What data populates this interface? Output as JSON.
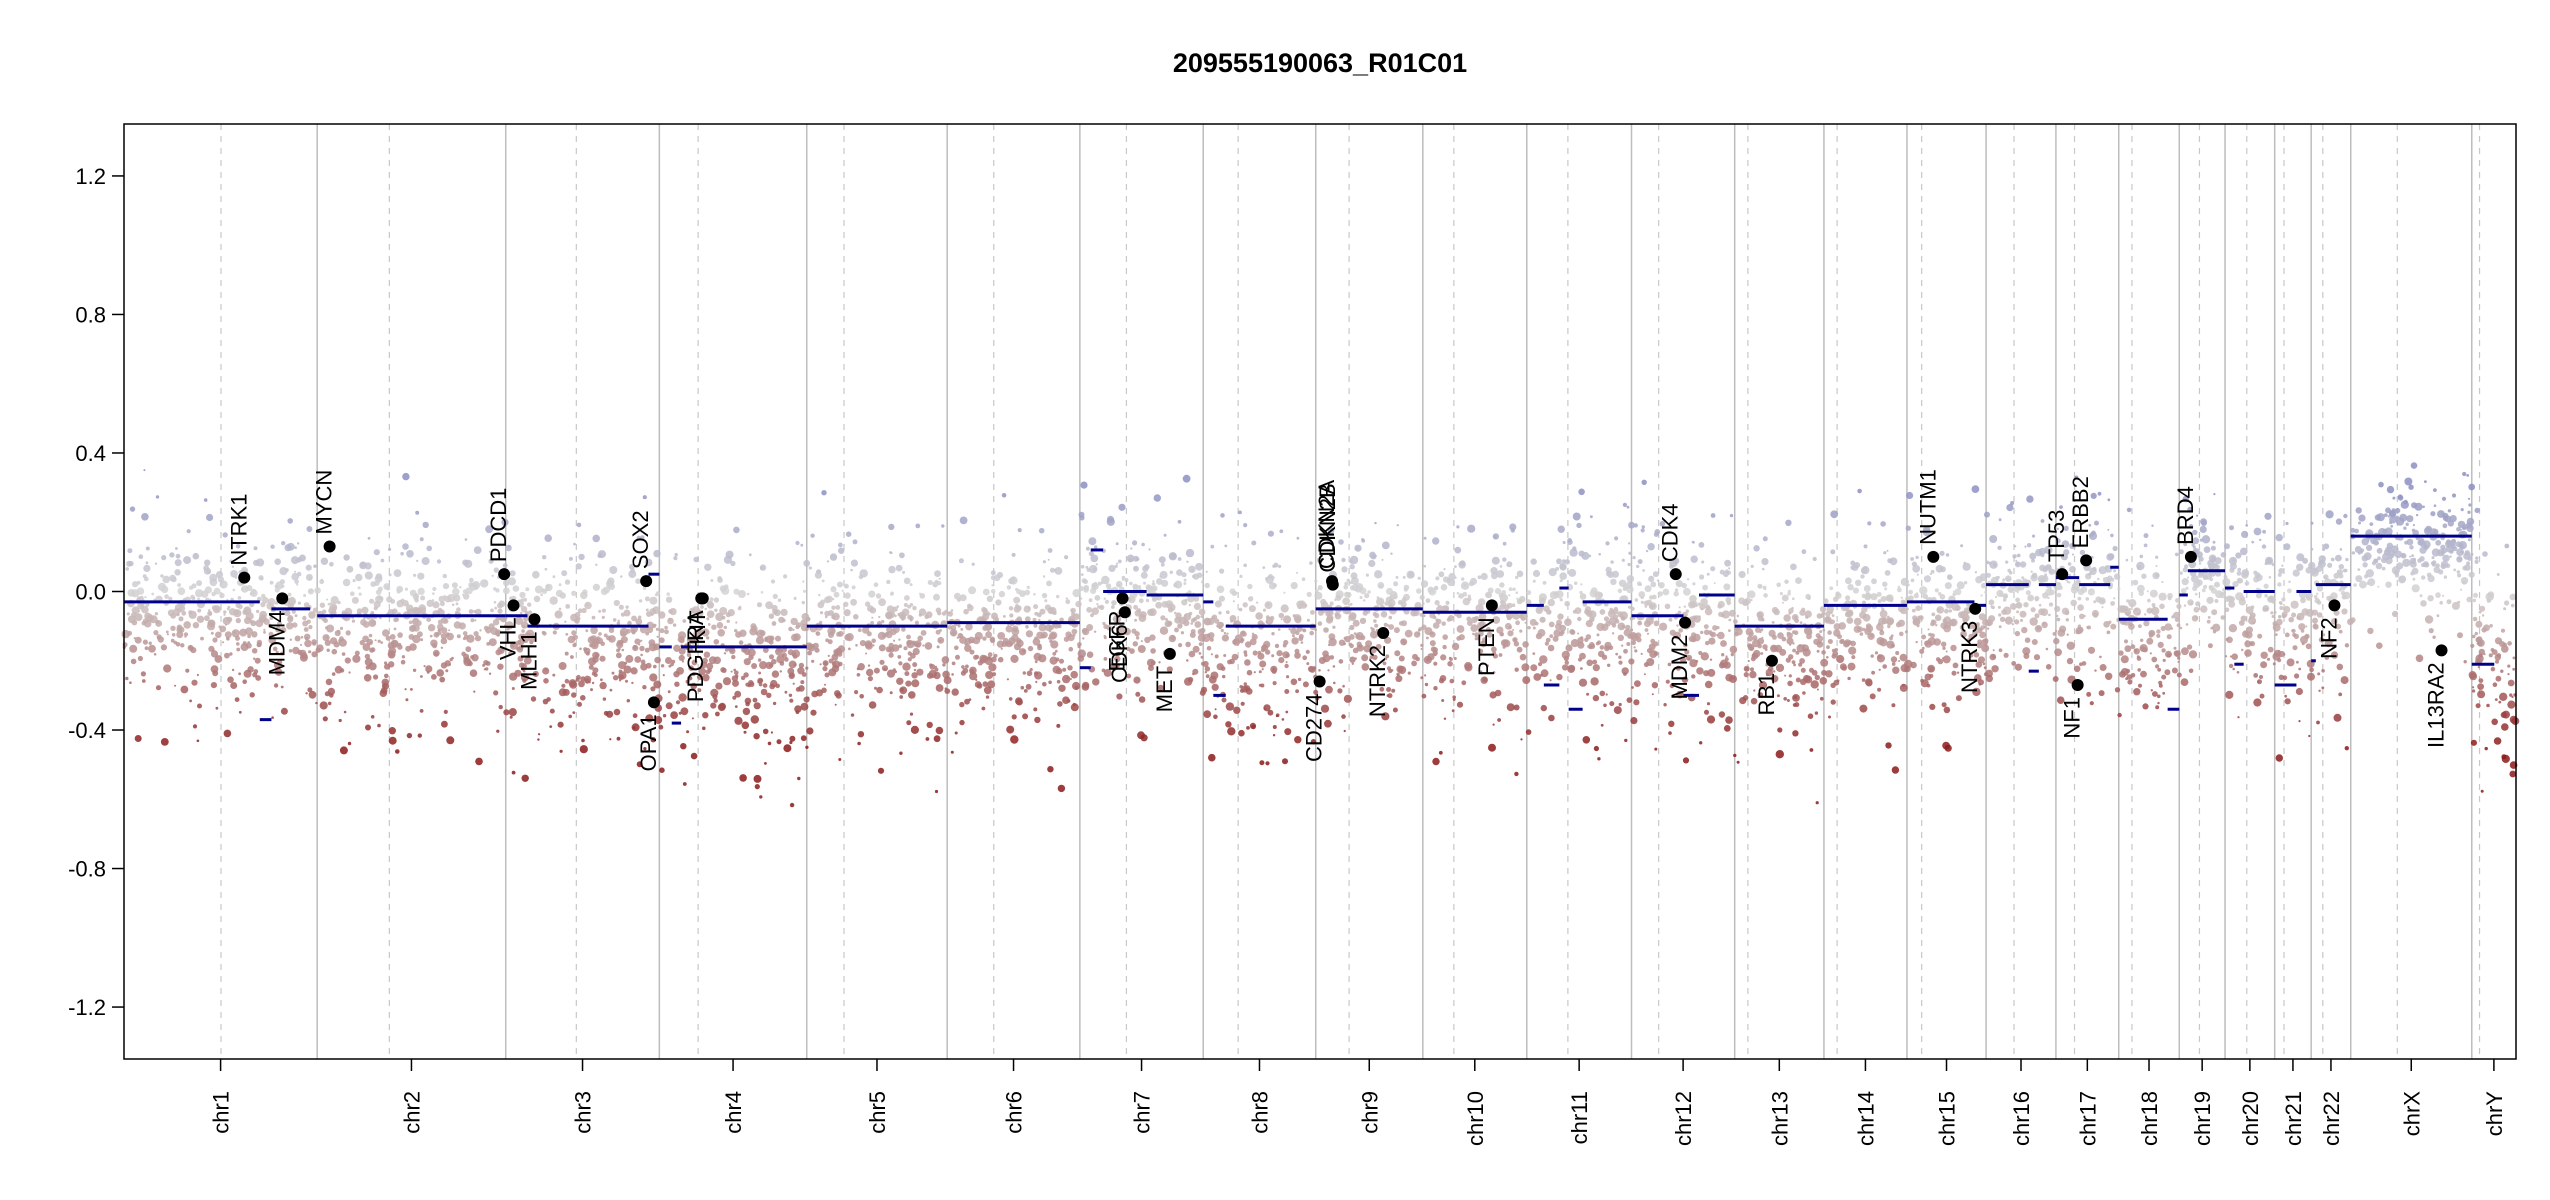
{
  "chart_data": {
    "type": "scatter",
    "title": "209555190063_R01C01",
    "xlabel": "",
    "ylabel": "",
    "ylim": [
      -1.35,
      1.35
    ],
    "yticks": [
      -1.2,
      -0.8,
      -0.4,
      0.0,
      0.4,
      0.8,
      1.2
    ],
    "ytick_labels": [
      "-1.2",
      "-0.8",
      "-0.4",
      "0.0",
      "0.4",
      "0.8",
      "1.2"
    ],
    "chromosomes": [
      {
        "name": "chr1",
        "start": 0.0,
        "end": 249.0,
        "centromere": 125.0
      },
      {
        "name": "chr2",
        "start": 249.0,
        "end": 492.0,
        "centromere": 93.0
      },
      {
        "name": "chr3",
        "start": 492.0,
        "end": 690.0,
        "centromere": 91.0
      },
      {
        "name": "chr4",
        "start": 690.0,
        "end": 880.0,
        "centromere": 50.0
      },
      {
        "name": "chr5",
        "start": 880.0,
        "end": 1061.0,
        "centromere": 48.0
      },
      {
        "name": "chr6",
        "start": 1061.0,
        "end": 1232.0,
        "centromere": 60.0
      },
      {
        "name": "chr7",
        "start": 1232.0,
        "end": 1391.0,
        "centromere": 60.0
      },
      {
        "name": "chr8",
        "start": 1391.0,
        "end": 1536.0,
        "centromere": 45.0
      },
      {
        "name": "chr9",
        "start": 1536.0,
        "end": 1674.0,
        "centromere": 43.0
      },
      {
        "name": "chr10",
        "start": 1674.0,
        "end": 1808.0,
        "centromere": 40.0
      },
      {
        "name": "chr11",
        "start": 1808.0,
        "end": 1943.0,
        "centromere": 53.0
      },
      {
        "name": "chr12",
        "start": 1943.0,
        "end": 2076.0,
        "centromere": 35.0
      },
      {
        "name": "chr13",
        "start": 2076.0,
        "end": 2191.0,
        "centromere": 17.0
      },
      {
        "name": "chr14",
        "start": 2191.0,
        "end": 2298.0,
        "centromere": 17.0
      },
      {
        "name": "chr15",
        "start": 2298.0,
        "end": 2400.0,
        "centromere": 19.0
      },
      {
        "name": "chr16",
        "start": 2400.0,
        "end": 2490.0,
        "centromere": 36.0
      },
      {
        "name": "chr17",
        "start": 2490.0,
        "end": 2571.0,
        "centromere": 24.0
      },
      {
        "name": "chr18",
        "start": 2571.0,
        "end": 2649.0,
        "centromere": 17.0
      },
      {
        "name": "chr19",
        "start": 2649.0,
        "end": 2708.0,
        "centromere": 26.0
      },
      {
        "name": "chr20",
        "start": 2708.0,
        "end": 2772.0,
        "centromere": 28.0
      },
      {
        "name": "chr21",
        "start": 2772.0,
        "end": 2819.0,
        "centromere": 12.0
      },
      {
        "name": "chr22",
        "start": 2819.0,
        "end": 2870.0,
        "centromere": 15.0
      },
      {
        "name": "chrX",
        "start": 2870.0,
        "end": 3026.0,
        "centromere": 60.0
      },
      {
        "name": "chrY",
        "start": 3026.0,
        "end": 3083.0,
        "centromere": 10.0
      }
    ],
    "xlim": [
      0,
      3083
    ],
    "segments": [
      {
        "x0": 0,
        "x1": 175,
        "y": -0.03
      },
      {
        "x0": 175,
        "x1": 190,
        "y": -0.37
      },
      {
        "x0": 190,
        "x1": 240,
        "y": -0.05
      },
      {
        "x0": 249,
        "x1": 492,
        "y": -0.07
      },
      {
        "x0": 492,
        "x1": 520,
        "y": -0.07
      },
      {
        "x0": 520,
        "x1": 676,
        "y": -0.1
      },
      {
        "x0": 676,
        "x1": 690,
        "y": 0.05
      },
      {
        "x0": 690,
        "x1": 706,
        "y": -0.16
      },
      {
        "x0": 706,
        "x1": 718,
        "y": -0.38
      },
      {
        "x0": 718,
        "x1": 880,
        "y": -0.16
      },
      {
        "x0": 880,
        "x1": 1061,
        "y": -0.1
      },
      {
        "x0": 1061,
        "x1": 1232,
        "y": -0.09
      },
      {
        "x0": 1232,
        "x1": 1246,
        "y": -0.22
      },
      {
        "x0": 1246,
        "x1": 1262,
        "y": 0.12
      },
      {
        "x0": 1262,
        "x1": 1318,
        "y": 0.0
      },
      {
        "x0": 1318,
        "x1": 1391,
        "y": -0.01
      },
      {
        "x0": 1391,
        "x1": 1404,
        "y": -0.03
      },
      {
        "x0": 1404,
        "x1": 1420,
        "y": -0.3
      },
      {
        "x0": 1420,
        "x1": 1536,
        "y": -0.1
      },
      {
        "x0": 1536,
        "x1": 1674,
        "y": -0.05
      },
      {
        "x0": 1674,
        "x1": 1808,
        "y": -0.06
      },
      {
        "x0": 1808,
        "x1": 1830,
        "y": -0.04
      },
      {
        "x0": 1830,
        "x1": 1850,
        "y": -0.27
      },
      {
        "x0": 1850,
        "x1": 1862,
        "y": 0.01
      },
      {
        "x0": 1862,
        "x1": 1880,
        "y": -0.34
      },
      {
        "x0": 1880,
        "x1": 1943,
        "y": -0.03
      },
      {
        "x0": 1943,
        "x1": 2010,
        "y": -0.07
      },
      {
        "x0": 2010,
        "x1": 2030,
        "y": -0.3
      },
      {
        "x0": 2030,
        "x1": 2076,
        "y": -0.01
      },
      {
        "x0": 2076,
        "x1": 2191,
        "y": -0.1
      },
      {
        "x0": 2191,
        "x1": 2298,
        "y": -0.04
      },
      {
        "x0": 2298,
        "x1": 2385,
        "y": -0.03
      },
      {
        "x0": 2385,
        "x1": 2400,
        "y": -0.04
      },
      {
        "x0": 2400,
        "x1": 2455,
        "y": 0.02
      },
      {
        "x0": 2455,
        "x1": 2468,
        "y": -0.23
      },
      {
        "x0": 2468,
        "x1": 2490,
        "y": 0.02
      },
      {
        "x0": 2490,
        "x1": 2520,
        "y": 0.04
      },
      {
        "x0": 2520,
        "x1": 2560,
        "y": 0.02
      },
      {
        "x0": 2560,
        "x1": 2571,
        "y": 0.07
      },
      {
        "x0": 2571,
        "x1": 2634,
        "y": -0.08
      },
      {
        "x0": 2634,
        "x1": 2649,
        "y": -0.34
      },
      {
        "x0": 2649,
        "x1": 2660,
        "y": -0.01
      },
      {
        "x0": 2660,
        "x1": 2708,
        "y": 0.06
      },
      {
        "x0": 2708,
        "x1": 2720,
        "y": 0.01
      },
      {
        "x0": 2720,
        "x1": 2732,
        "y": -0.21
      },
      {
        "x0": 2732,
        "x1": 2772,
        "y": 0.0
      },
      {
        "x0": 2772,
        "x1": 2800,
        "y": -0.27
      },
      {
        "x0": 2800,
        "x1": 2819,
        "y": 0.0
      },
      {
        "x0": 2819,
        "x1": 2825,
        "y": -0.2
      },
      {
        "x0": 2825,
        "x1": 2870,
        "y": 0.02
      },
      {
        "x0": 2870,
        "x1": 3026,
        "y": 0.16
      },
      {
        "x0": 3026,
        "x1": 3055,
        "y": -0.21
      }
    ],
    "genes": [
      {
        "name": "NTRK1",
        "x": 155,
        "y": 0.04,
        "label_side": "above"
      },
      {
        "name": "MDM4",
        "x": 204,
        "y": -0.02,
        "label_side": "below"
      },
      {
        "name": "MYCN",
        "x": 265,
        "y": 0.13,
        "label_side": "above"
      },
      {
        "name": "PDCD1",
        "x": 490,
        "y": 0.05,
        "label_side": "above"
      },
      {
        "name": "VHL",
        "x": 502,
        "y": -0.04,
        "label_side": "below"
      },
      {
        "name": "MLH1",
        "x": 529,
        "y": -0.08,
        "label_side": "below"
      },
      {
        "name": "SOX2",
        "x": 673,
        "y": 0.03,
        "label_side": "above"
      },
      {
        "name": "OPA1",
        "x": 683,
        "y": -0.32,
        "label_side": "below"
      },
      {
        "name": "PDGFRA",
        "x": 744,
        "y": -0.02,
        "label_side": "below"
      },
      {
        "name": "KIT",
        "x": 746,
        "y": -0.02,
        "label_side": "below"
      },
      {
        "name": "EGFR",
        "x": 1287,
        "y": -0.02,
        "label_side": "below"
      },
      {
        "name": "CDK6",
        "x": 1290,
        "y": -0.06,
        "label_side": "below"
      },
      {
        "name": "MET",
        "x": 1348,
        "y": -0.18,
        "label_side": "below"
      },
      {
        "name": "CD274",
        "x": 1541,
        "y": -0.26,
        "label_side": "below"
      },
      {
        "name": "CDKN2A",
        "x": 1557,
        "y": 0.03,
        "label_side": "above"
      },
      {
        "name": "CDKN2B",
        "x": 1558,
        "y": 0.02,
        "label_side": "above"
      },
      {
        "name": "NTRK2",
        "x": 1623,
        "y": -0.12,
        "label_side": "below"
      },
      {
        "name": "PTEN",
        "x": 1763,
        "y": -0.04,
        "label_side": "below"
      },
      {
        "name": "CDK4",
        "x": 2000,
        "y": 0.05,
        "label_side": "above"
      },
      {
        "name": "MDM2",
        "x": 2012,
        "y": -0.09,
        "label_side": "below"
      },
      {
        "name": "RB1",
        "x": 2124,
        "y": -0.2,
        "label_side": "below"
      },
      {
        "name": "NUTM1",
        "x": 2332,
        "y": 0.1,
        "label_side": "above"
      },
      {
        "name": "NTRK3",
        "x": 2386,
        "y": -0.05,
        "label_side": "below"
      },
      {
        "name": "TP53",
        "x": 2498,
        "y": 0.05,
        "label_side": "above"
      },
      {
        "name": "NF1",
        "x": 2518,
        "y": -0.27,
        "label_side": "below"
      },
      {
        "name": "ERBB2",
        "x": 2529,
        "y": 0.09,
        "label_side": "above"
      },
      {
        "name": "BRD4",
        "x": 2664,
        "y": 0.1,
        "label_side": "above"
      },
      {
        "name": "NF2",
        "x": 2849,
        "y": -0.04,
        "label_side": "below"
      },
      {
        "name": "IL13RA2",
        "x": 2987,
        "y": -0.17,
        "label_side": "below"
      }
    ],
    "profile": [
      {
        "name": "chr1",
        "baseline": -0.07,
        "spread": 0.13
      },
      {
        "name": "chr2",
        "baseline": -0.1,
        "spread": 0.14
      },
      {
        "name": "chr3",
        "baseline": -0.12,
        "spread": 0.15
      },
      {
        "name": "chr4",
        "baseline": -0.17,
        "spread": 0.14
      },
      {
        "name": "chr5",
        "baseline": -0.12,
        "spread": 0.14
      },
      {
        "name": "chr6",
        "baseline": -0.11,
        "spread": 0.14
      },
      {
        "name": "chr7",
        "baseline": -0.03,
        "spread": 0.13
      },
      {
        "name": "chr8",
        "baseline": -0.14,
        "spread": 0.15
      },
      {
        "name": "chr9",
        "baseline": -0.07,
        "spread": 0.13
      },
      {
        "name": "chr10",
        "baseline": -0.08,
        "spread": 0.14
      },
      {
        "name": "chr11",
        "baseline": -0.06,
        "spread": 0.14
      },
      {
        "name": "chr12",
        "baseline": -0.09,
        "spread": 0.14
      },
      {
        "name": "chr13",
        "baseline": -0.13,
        "spread": 0.15
      },
      {
        "name": "chr14",
        "baseline": -0.07,
        "spread": 0.13
      },
      {
        "name": "chr15",
        "baseline": -0.06,
        "spread": 0.13
      },
      {
        "name": "chr16",
        "baseline": -0.01,
        "spread": 0.12
      },
      {
        "name": "chr17",
        "baseline": 0.01,
        "spread": 0.13
      },
      {
        "name": "chr18",
        "baseline": -0.1,
        "spread": 0.14
      },
      {
        "name": "chr19",
        "baseline": 0.04,
        "spread": 0.12
      },
      {
        "name": "chr20",
        "baseline": -0.03,
        "spread": 0.13
      },
      {
        "name": "chr21",
        "baseline": -0.07,
        "spread": 0.14
      },
      {
        "name": "chr22",
        "baseline": -0.02,
        "spread": 0.13
      },
      {
        "name": "chrX",
        "baseline": 0.14,
        "spread": 0.09
      },
      {
        "name": "chrY",
        "baseline": -0.2,
        "spread": 0.15
      }
    ],
    "colors": {
      "gain": "#8c8fc2",
      "neutral": "#d3d3d3",
      "loss": "#8b1a1a",
      "segment": "#00008b",
      "gene_point": "#000000",
      "chrom_border": "#bdbdbd",
      "centromere_line": "#c8c8c8"
    },
    "grid": false,
    "legend": "none"
  }
}
